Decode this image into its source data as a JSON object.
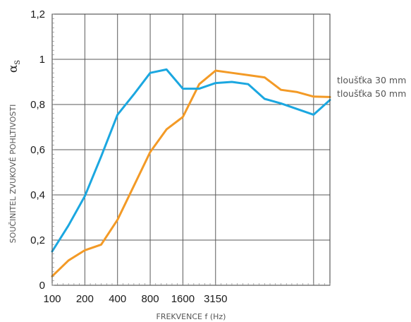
{
  "chart_data": {
    "type": "line",
    "xlabel": "FREKVENCE f (Hz)",
    "ylabel": "SOUČINITEL ZVUKOVÉ POHLTIVOSTI",
    "ylabel_symbol": "α",
    "ylabel_symbol_sub": "S",
    "x": [
      100,
      125,
      160,
      200,
      250,
      315,
      400,
      500,
      630,
      800,
      1000,
      1250,
      1600,
      2000,
      2500,
      3150,
      4000,
      5000
    ],
    "x_tick_labels": [
      "100",
      "200",
      "400",
      "800",
      "1600",
      "3150"
    ],
    "y_tick_labels": [
      "0",
      "0,2",
      "0,4",
      "0,6",
      "0,8",
      "1",
      "1,2"
    ],
    "ylim": [
      0,
      1.2
    ],
    "grid": true,
    "legend_position": "right",
    "series": [
      {
        "name": "tloušťka 30 mm",
        "color": "#f39a26",
        "values": [
          0.04,
          0.11,
          0.155,
          0.18,
          0.29,
          0.44,
          0.59,
          0.69,
          0.745,
          0.89,
          0.95,
          0.94,
          0.93,
          0.92,
          0.865,
          0.855,
          0.835,
          0.833
        ]
      },
      {
        "name": "tloušťka 50 mm",
        "color": "#1ba7e0",
        "values": [
          0.15,
          0.265,
          0.395,
          0.57,
          0.755,
          0.845,
          0.94,
          0.955,
          0.87,
          0.87,
          0.895,
          0.9,
          0.89,
          0.825,
          0.805,
          0.78,
          0.755,
          0.82
        ]
      }
    ]
  }
}
